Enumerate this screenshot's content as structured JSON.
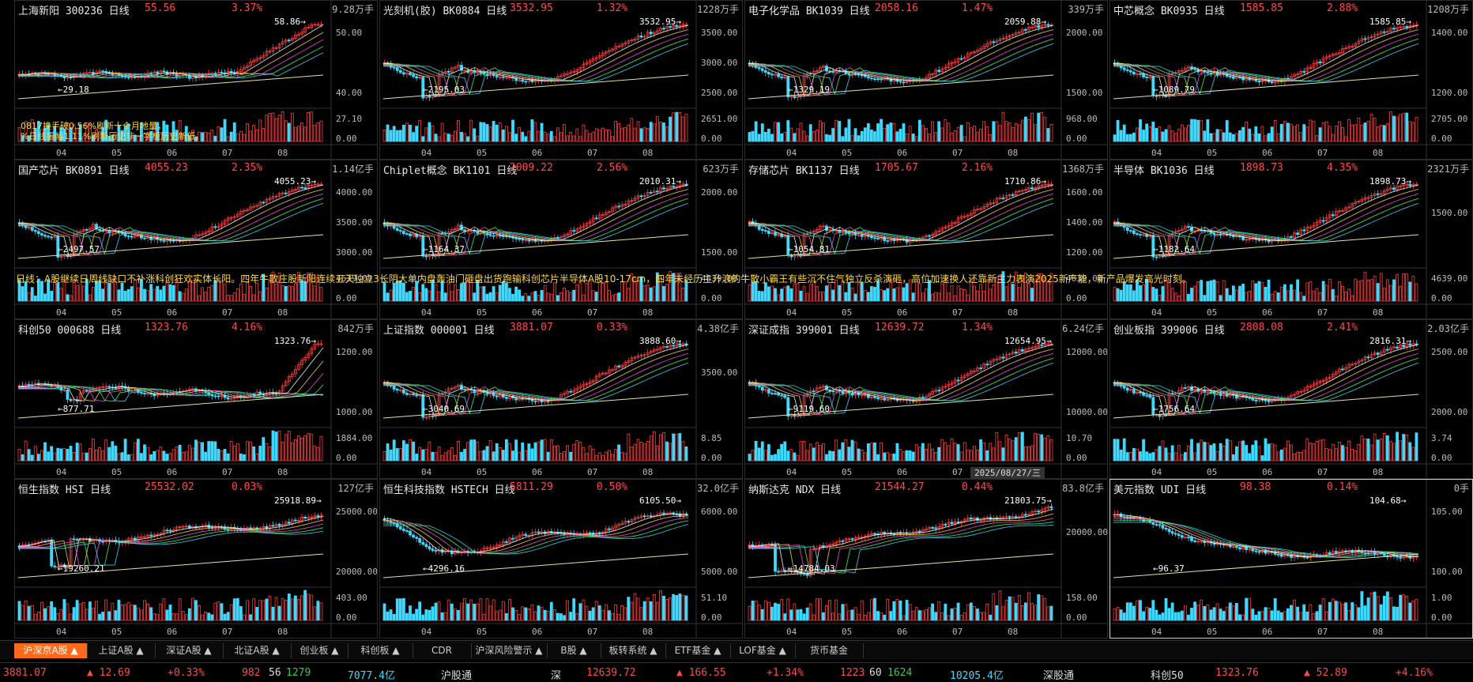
{
  "panels": [
    {
      "name": "上海新阳",
      "code": "300236",
      "period": "日线",
      "price": "55.56",
      "pct": "3.37%",
      "vol_unit": "9.28万手",
      "yticks": [
        "50.00",
        "40.00"
      ],
      "vticks": [
        "27.10",
        "0.00"
      ],
      "high": "58.86",
      "low": "29.18",
      "months": [
        "04",
        "05",
        "06",
        "07",
        "08"
      ],
      "trend": "up_flat"
    },
    {
      "name": "光刻机(胶)",
      "code": "BK0884",
      "period": "日线",
      "price": "3532.95",
      "pct": "1.32%",
      "vol_unit": "1228万手",
      "yticks": [
        "3500.00",
        "3000.00",
        "2500.00"
      ],
      "vticks": [
        "2651.00",
        "0.00"
      ],
      "high": "3532.95",
      "low": "2195.03",
      "months": [
        "04",
        "05",
        "06",
        "07",
        "08"
      ],
      "trend": "up"
    },
    {
      "name": "电子化学品",
      "code": "BK1039",
      "period": "日线",
      "price": "2058.16",
      "pct": "1.47%",
      "vol_unit": "339万手",
      "yticks": [
        "2000.00",
        "1500.00"
      ],
      "vticks": [
        "968.00",
        "0.00"
      ],
      "high": "2059.88",
      "low": "1329.19",
      "months": [
        "04",
        "05",
        "06",
        "07",
        "08"
      ],
      "trend": "up"
    },
    {
      "name": "中芯概念",
      "code": "BK0935",
      "period": "日线",
      "price": "1585.85",
      "pct": "2.88%",
      "vol_unit": "1208万手",
      "yticks": [
        "1400.00",
        "1200.00"
      ],
      "vticks": [
        "2705.00",
        "0.00"
      ],
      "high": "1585.85",
      "low": "1089.79",
      "months": [
        "04",
        "05",
        "06",
        "07",
        "08"
      ],
      "trend": "up"
    },
    {
      "name": "国产芯片",
      "code": "BK0891",
      "period": "日线",
      "price": "4055.23",
      "pct": "2.35%",
      "vol_unit": "1.14亿手",
      "yticks": [
        "4000.00",
        "3500.00",
        "3000.00"
      ],
      "vticks": [
        "4639.00",
        "0.00"
      ],
      "high": "4055.23",
      "low": "2497.57",
      "months": [
        "04",
        "05",
        "06",
        "07",
        "08"
      ],
      "trend": "up"
    },
    {
      "name": "Chiplet概念",
      "code": "BK1101",
      "period": "日线",
      "price": "2009.22",
      "pct": "2.56%",
      "vol_unit": "623万手",
      "yticks": [
        "2000.00",
        "1500.00"
      ],
      "vticks": [
        "4639.00",
        "0.00"
      ],
      "high": "2010.31",
      "low": "1164.37",
      "months": [
        "04",
        "05",
        "06",
        "07",
        "08"
      ],
      "trend": "up"
    },
    {
      "name": "存储芯片",
      "code": "BK1137",
      "period": "日线",
      "price": "1705.67",
      "pct": "2.16%",
      "vol_unit": "1368万手",
      "yticks": [
        "1600.00",
        "1400.00",
        "1200.00"
      ],
      "vticks": [
        "4639.00",
        "0.00"
      ],
      "high": "1710.86",
      "low": "1054.81",
      "months": [
        "04",
        "05",
        "06",
        "07",
        "08"
      ],
      "trend": "up"
    },
    {
      "name": "半导体",
      "code": "BK1036",
      "period": "日线",
      "price": "1898.73",
      "pct": "4.35%",
      "vol_unit": "2321万手",
      "yticks": [
        "1500.00"
      ],
      "vticks": [
        "4639.00",
        "0.00"
      ],
      "high": "1898.73",
      "low": "1182.64",
      "months": [
        "04",
        "05",
        "06",
        "07",
        "08"
      ],
      "trend": "up"
    },
    {
      "name": "科创50",
      "code": "000688",
      "period": "日线",
      "price": "1323.76",
      "pct": "4.16%",
      "vol_unit": "842万手",
      "yticks": [
        "1200.00",
        "1000.00"
      ],
      "vticks": [
        "1884.00",
        "0.00"
      ],
      "high": "1323.76",
      "low": "877.71",
      "months": [
        "04",
        "05",
        "06",
        "07",
        "08"
      ],
      "trend": "spike"
    },
    {
      "name": "上证指数",
      "code": "000001",
      "period": "日线",
      "price": "3881.07",
      "pct": "0.33%",
      "vol_unit": "4.38亿手",
      "yticks": [
        "3500.00"
      ],
      "vticks": [
        "8.85",
        "0.00"
      ],
      "high": "3888.60",
      "low": "3040.69",
      "months": [
        "04",
        "05",
        "06",
        "07",
        "08"
      ],
      "trend": "up"
    },
    {
      "name": "深证成指",
      "code": "399001",
      "period": "日线",
      "price": "12639.72",
      "pct": "1.34%",
      "vol_unit": "6.24亿手",
      "yticks": [
        "12000.00",
        "10000.00"
      ],
      "vticks": [
        "10.70",
        "0.00"
      ],
      "high": "12654.95",
      "low": "9119.60",
      "months": [
        "04",
        "05",
        "06",
        "07",
        "08"
      ],
      "trend": "up"
    },
    {
      "name": "创业板指",
      "code": "399006",
      "period": "日线",
      "price": "2808.08",
      "pct": "2.41%",
      "vol_unit": "2.03亿手",
      "yticks": [
        "2500.00",
        "2000.00"
      ],
      "vticks": [
        "3.74",
        "0.00"
      ],
      "high": "2816.31",
      "low": "1756.64",
      "months": [
        "04",
        "05",
        "06",
        "07",
        "08"
      ],
      "trend": "up"
    },
    {
      "name": "恒生指数",
      "code": "HSI",
      "period": "日线",
      "price": "25532.02",
      "pct": "0.03%",
      "vol_unit": "127亿手",
      "yticks": [
        "25000.00",
        "20000.00"
      ],
      "vticks": [
        "403.00",
        "0.00"
      ],
      "high": "25918.89",
      "low": "19260.21",
      "months": [
        "04",
        "05",
        "06",
        "07",
        "08"
      ],
      "trend": "hk"
    },
    {
      "name": "恒生科技指数",
      "code": "HSTECH",
      "period": "日线",
      "price": "5811.29",
      "pct": "0.50%",
      "vol_unit": "32.0亿手",
      "yticks": [
        "6000.00",
        "5000.00"
      ],
      "vticks": [
        "51.10",
        "0.00"
      ],
      "high": "6105.50",
      "low": "4296.16",
      "months": [
        "04",
        "05",
        "06",
        "07",
        "08"
      ],
      "trend": "hkt"
    },
    {
      "name": "纳斯达克",
      "code": "NDX",
      "period": "日线",
      "price": "21544.27",
      "pct": "0.44%",
      "vol_unit": "83.8亿手",
      "yticks": [
        "20000.00"
      ],
      "vticks": [
        "158.00",
        "0.00"
      ],
      "high": "21803.75",
      "low": "14784.03",
      "months": [
        "04",
        "05",
        "06",
        "07",
        "08"
      ],
      "trend": "ndx"
    },
    {
      "name": "美元指数",
      "code": "UDI",
      "period": "日线",
      "price": "98.38",
      "pct": "0.14%",
      "vol_unit": "0手",
      "yticks": [
        "105.00",
        "100.00"
      ],
      "vticks": [
        "1.00",
        "0.00"
      ],
      "high": "104.68",
      "low": "96.37",
      "months": [
        "04",
        "05",
        "06",
        "07",
        "08"
      ],
      "trend": "down"
    }
  ],
  "annotation_line1": "0817换手破0.56%刷新十个月地量，",
  "annotation_line2": "%日线振幅1.11%刷新历史非一字板历史新低。",
  "marquee": "日线：A股继续日周线缺口不补涨科创狂欢实体长阳。四年牛散庄股新阳连续五天独立3长阴大单内盘轰油门砸盘出货跑输科创芯片半导体A股10-17cm，四年未经历主升浪的牛散小霸王有些沉不住气独立反杀演砸，高位加速换人还靠新主力表演2025新产能，新产品爆发高光时刻。",
  "date_tip": "2025/08/27/三",
  "tabs": [
    {
      "label": "沪深京A股 ▲",
      "active": true
    },
    {
      "label": "上证A股 ▲",
      "active": false
    },
    {
      "label": "深证A股 ▲",
      "active": false
    },
    {
      "label": "北证A股 ▲",
      "active": false
    },
    {
      "label": "创业板 ▲",
      "active": false
    },
    {
      "label": "科创板 ▲",
      "active": false
    },
    {
      "label": "CDR",
      "active": false
    },
    {
      "label": "沪深风险警示 ▲",
      "active": false
    },
    {
      "label": "B股 ▲",
      "active": false
    },
    {
      "label": "板转系统 ▲",
      "active": false
    },
    {
      "label": "ETF基金 ▲",
      "active": false
    },
    {
      "label": "LOF基金 ▲",
      "active": false
    },
    {
      "label": "货币基金",
      "active": false
    }
  ],
  "status": {
    "sh_price": "3881.07",
    "sh_chg": "▲ 12.69",
    "sh_pct": "+0.33%",
    "sh_up": "982",
    "sh_flat": "56",
    "sh_down": "1279",
    "sh_amt": "7077.4亿",
    "hgt": "沪股通",
    "sz_label": "深",
    "sz_price": "12639.72",
    "sz_chg": "▲ 166.55",
    "sz_pct": "+1.34%",
    "sz_up": "1223",
    "sz_flat": "60",
    "sz_down": "1624",
    "sz_amt": "10205.4亿",
    "sgt": "深股通",
    "kc_label": "科创50",
    "kc_price": "1323.76",
    "kc_chg": "▲ 52.89",
    "kc_pct": "+4.16%"
  }
}
